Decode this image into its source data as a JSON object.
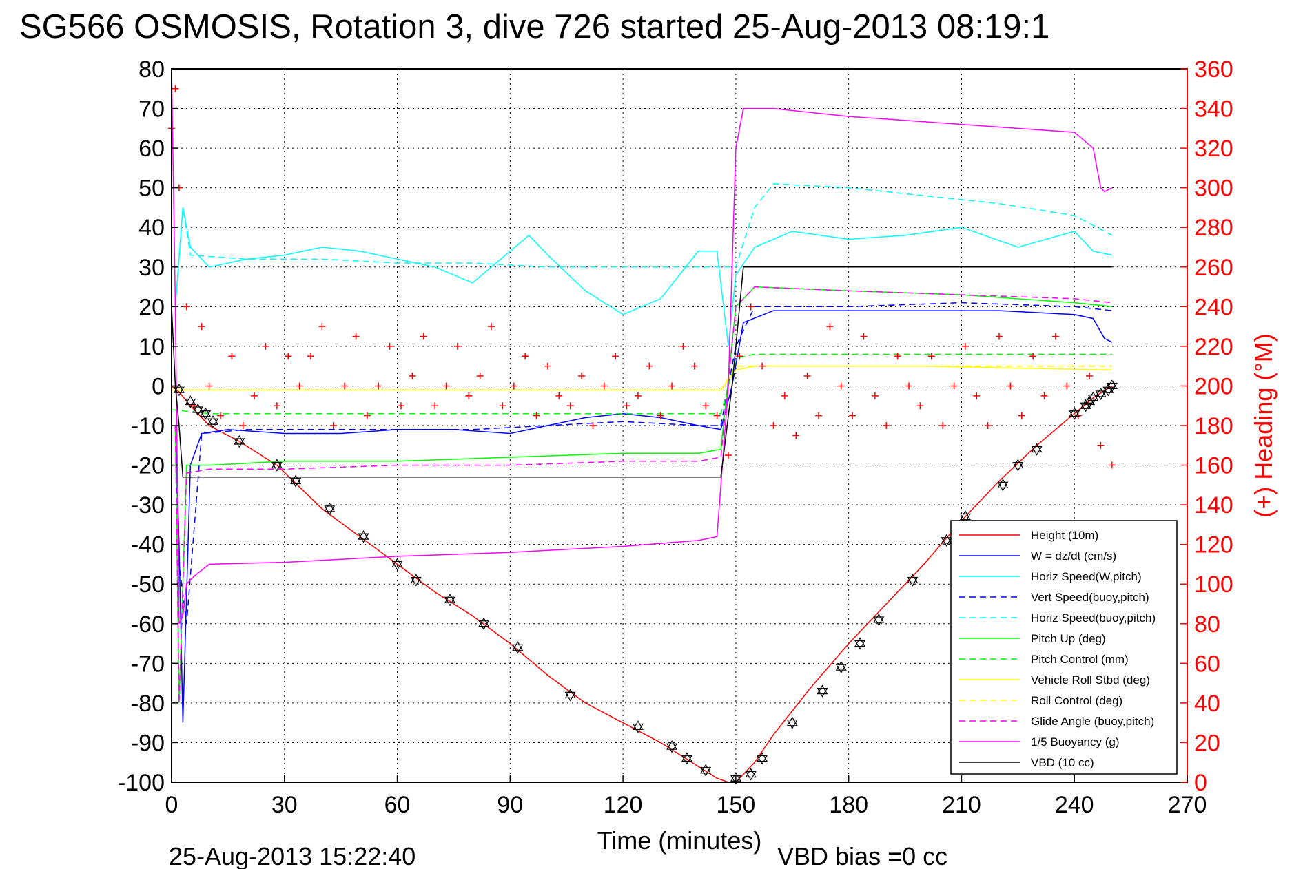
{
  "title": "SG566 OSMOSIS, Rotation 3, dive 726 started 25-Aug-2013 08:19:1",
  "footer": {
    "timestamp": "25-Aug-2013 15:22:40",
    "vbd_bias": "VBD bias =0 cc"
  },
  "colors": {
    "height": "#ff0000",
    "w": "#0000ff",
    "horiz": "#00ffff",
    "pitch": "#00ff00",
    "roll": "#ffff00",
    "glide": "#ff00ff",
    "buoy": "#ff00ff",
    "vbd": "#000000",
    "heading_marker": "#ff0000",
    "right_axis": "#ff0000"
  },
  "chart_data": {
    "type": "line",
    "title": "SG566 OSMOSIS, Rotation 3, dive 726 started 25-Aug-2013 08:19:1",
    "xlabel": "Time (minutes)",
    "ylabel": "",
    "ylabel_right": "(+) Heading (°M)",
    "xlim": [
      0,
      270
    ],
    "ylim": [
      -100,
      80
    ],
    "ylim_right": [
      0,
      360
    ],
    "xticks": [
      "0",
      "30",
      "60",
      "90",
      "120",
      "150",
      "180",
      "210",
      "240",
      "270"
    ],
    "yticks": [
      "80",
      "70",
      "60",
      "50",
      "40",
      "30",
      "20",
      "10",
      "0",
      "-10",
      "-20",
      "-30",
      "-40",
      "-50",
      "-60",
      "-70",
      "-80",
      "-90",
      "-100"
    ],
    "yticks_right": [
      "360",
      "340",
      "320",
      "300",
      "280",
      "260",
      "240",
      "220",
      "200",
      "180",
      "160",
      "140",
      "120",
      "100",
      "80",
      "60",
      "40",
      "20",
      "0"
    ],
    "grid": true,
    "legend_position": "bottom-right",
    "series": [
      {
        "name": "Height (10m)",
        "style": "solid",
        "color": "#ff0000",
        "x": [
          0,
          2,
          5,
          10,
          18,
          28,
          40,
          50,
          60,
          70,
          80,
          90,
          100,
          110,
          120,
          130,
          140,
          145,
          148,
          150,
          155,
          160,
          170,
          180,
          190,
          200,
          210,
          220,
          230,
          240,
          245,
          250
        ],
        "y": [
          0,
          -1.5,
          -5,
          -10,
          -14,
          -20,
          -31,
          -38,
          -45,
          -52,
          -58,
          -65,
          -73,
          -80,
          -85,
          -90,
          -96,
          -99,
          -100,
          -100,
          -95,
          -88,
          -76,
          -65,
          -55,
          -45,
          -34,
          -24,
          -15,
          -7,
          -3,
          0
        ]
      },
      {
        "name": "W = dz/dt (cm/s)",
        "style": "solid",
        "color": "#0000ff",
        "x": [
          1,
          2,
          3,
          5,
          8,
          15,
          30,
          45,
          60,
          75,
          90,
          100,
          110,
          120,
          130,
          140,
          146,
          149,
          152,
          160,
          180,
          200,
          220,
          240,
          245,
          248,
          250
        ],
        "y": [
          -10,
          -40,
          -85,
          -20,
          -12,
          -11,
          -12,
          -12,
          -11,
          -11,
          -12,
          -10,
          -8,
          -7,
          -8,
          -10,
          -11,
          0,
          16,
          19,
          19,
          19,
          19,
          18,
          17,
          12,
          11
        ]
      },
      {
        "name": "Horiz Speed(W,pitch)",
        "style": "solid",
        "color": "#00ffff",
        "x": [
          1,
          3,
          5,
          10,
          20,
          30,
          40,
          50,
          60,
          70,
          80,
          90,
          95,
          100,
          110,
          120,
          130,
          140,
          145,
          148,
          150,
          155,
          165,
          180,
          195,
          210,
          225,
          240,
          245,
          250
        ],
        "y": [
          20,
          45,
          35,
          30,
          32,
          33,
          35,
          34,
          32,
          30,
          26,
          34,
          38,
          33,
          24,
          18,
          22,
          34,
          34,
          10,
          28,
          35,
          39,
          37,
          38,
          40,
          35,
          39,
          34,
          33
        ]
      },
      {
        "name": "Vert Speed(buoy,pitch)",
        "style": "dashed",
        "color": "#0000ff",
        "x": [
          1,
          2,
          4,
          8,
          20,
          40,
          60,
          80,
          100,
          120,
          140,
          146,
          150,
          155,
          180,
          210,
          240,
          250
        ],
        "y": [
          -10,
          -45,
          -60,
          -12,
          -11,
          -11,
          -11,
          -11,
          -10,
          -9,
          -10,
          -10,
          10,
          20,
          20,
          21,
          20,
          19
        ]
      },
      {
        "name": "Horiz Speed(buoy,pitch)",
        "style": "dashed",
        "color": "#00ffff",
        "x": [
          1,
          3,
          5,
          20,
          40,
          60,
          80,
          100,
          120,
          140,
          146,
          150,
          155,
          160,
          180,
          200,
          220,
          240,
          250
        ],
        "y": [
          20,
          45,
          33,
          32,
          32,
          31,
          31,
          30,
          30,
          30,
          30,
          30,
          45,
          51,
          50,
          48,
          46,
          43,
          38
        ]
      },
      {
        "name": "Pitch Up (deg)",
        "style": "solid",
        "color": "#00ff00",
        "x": [
          1,
          2,
          4,
          10,
          30,
          60,
          90,
          120,
          140,
          146,
          150,
          155,
          180,
          210,
          240,
          250
        ],
        "y": [
          -10,
          -80,
          -20,
          -20,
          -19,
          -19,
          -18,
          -17,
          -17,
          -16,
          20,
          25,
          24,
          23,
          21,
          20
        ]
      },
      {
        "name": "Pitch Control (mm)",
        "style": "dashed",
        "color": "#00ff00",
        "x": [
          0,
          10,
          40,
          80,
          120,
          146,
          150,
          155,
          200,
          250
        ],
        "y": [
          -6,
          -7,
          -7,
          -7,
          -7,
          -7,
          7,
          8,
          8,
          8
        ]
      },
      {
        "name": "Vehicle Roll Stbd (deg)",
        "style": "solid",
        "color": "#ffff00",
        "x": [
          0,
          10,
          50,
          100,
          146,
          150,
          155,
          200,
          250
        ],
        "y": [
          -1,
          -1,
          -1,
          -1,
          -1,
          4,
          5,
          5,
          4
        ]
      },
      {
        "name": "Roll Control (deg)",
        "style": "dashed",
        "color": "#ffff00",
        "x": [
          0,
          146,
          150,
          250
        ],
        "y": [
          -1,
          -1,
          5,
          5
        ]
      },
      {
        "name": "Glide Angle (buoy,pitch)",
        "style": "dashed",
        "color": "#ff00ff",
        "x": [
          1,
          2,
          4,
          10,
          30,
          60,
          90,
          120,
          140,
          146,
          150,
          155,
          180,
          210,
          240,
          250
        ],
        "y": [
          -10,
          -80,
          -22,
          -21,
          -21,
          -20,
          -20,
          -19,
          -19,
          -18,
          20,
          25,
          24,
          23,
          22,
          21
        ]
      },
      {
        "name": "1/5 Buoyancy (g)",
        "style": "solid",
        "color": "#ff00ff",
        "x": [
          0,
          1,
          2,
          3,
          4,
          6,
          10,
          30,
          60,
          90,
          120,
          140,
          145,
          148,
          150,
          152,
          160,
          180,
          210,
          240,
          245,
          247,
          248,
          250
        ],
        "y": [
          80,
          20,
          -60,
          -58,
          -50,
          -48,
          -45,
          -44.5,
          -43,
          -42,
          -40.5,
          -39,
          -38,
          0,
          60,
          70,
          70,
          68,
          66,
          64,
          60,
          50,
          49,
          50
        ]
      },
      {
        "name": "VBD (10 cc)",
        "style": "solid",
        "color": "#000000",
        "x": [
          0,
          1,
          2,
          3,
          146,
          149,
          150,
          152,
          250
        ],
        "y": [
          20,
          0,
          -10,
          -23,
          -23,
          0,
          10,
          30,
          30
        ]
      }
    ],
    "heading": {
      "name": "Heading",
      "marker": "+",
      "axis": "right",
      "color": "#ff0000",
      "x": [
        0,
        1,
        2,
        4,
        6,
        8,
        10,
        13,
        16,
        19,
        22,
        25,
        28,
        31,
        34,
        37,
        40,
        43,
        46,
        49,
        52,
        55,
        58,
        61,
        64,
        67,
        70,
        73,
        76,
        79,
        82,
        85,
        88,
        91,
        94,
        97,
        100,
        103,
        106,
        109,
        112,
        115,
        118,
        121,
        124,
        127,
        130,
        133,
        136,
        139,
        142,
        145,
        148,
        151,
        154,
        157,
        160,
        163,
        166,
        169,
        172,
        175,
        178,
        181,
        184,
        187,
        190,
        193,
        196,
        199,
        202,
        205,
        208,
        211,
        214,
        217,
        220,
        223,
        226,
        229,
        232,
        235,
        238,
        241,
        244,
        247,
        250
      ],
      "y": [
        330,
        350,
        300,
        240,
        190,
        230,
        200,
        185,
        215,
        180,
        195,
        220,
        190,
        215,
        200,
        215,
        230,
        180,
        200,
        225,
        185,
        200,
        220,
        190,
        205,
        225,
        190,
        200,
        220,
        195,
        205,
        230,
        190,
        200,
        215,
        185,
        210,
        195,
        190,
        205,
        180,
        200,
        215,
        190,
        195,
        210,
        185,
        200,
        220,
        210,
        190,
        185,
        165,
        215,
        240,
        210,
        180,
        195,
        175,
        205,
        185,
        230,
        200,
        185,
        225,
        195,
        180,
        215,
        200,
        190,
        215,
        180,
        200,
        220,
        195,
        180,
        225,
        200,
        185,
        215,
        195,
        225,
        200,
        185,
        205,
        170,
        160
      ]
    },
    "glider_depth_markers": {
      "name": "Depth markers",
      "marker": "hexagram",
      "color": "#000000",
      "x": [
        2,
        5,
        7,
        9,
        11,
        18,
        28,
        33,
        42,
        51,
        60,
        65,
        74,
        83,
        92,
        106,
        124,
        133,
        137,
        142,
        150,
        154,
        157,
        165,
        173,
        178,
        183,
        188,
        197,
        206,
        211,
        221,
        225,
        230,
        240,
        243,
        244,
        245,
        247,
        249,
        250
      ],
      "y": [
        -1,
        -4,
        -6,
        -7,
        -9,
        -14,
        -20,
        -24,
        -31,
        -38,
        -45,
        -49,
        -54,
        -60,
        -66,
        -78,
        -86,
        -91,
        -94,
        -97,
        -99,
        -98,
        -94,
        -85,
        -77,
        -71,
        -65,
        -59,
        -49,
        -39,
        -33,
        -25,
        -20,
        -16,
        -7,
        -5,
        -4,
        -3,
        -2,
        -1,
        0
      ]
    }
  }
}
